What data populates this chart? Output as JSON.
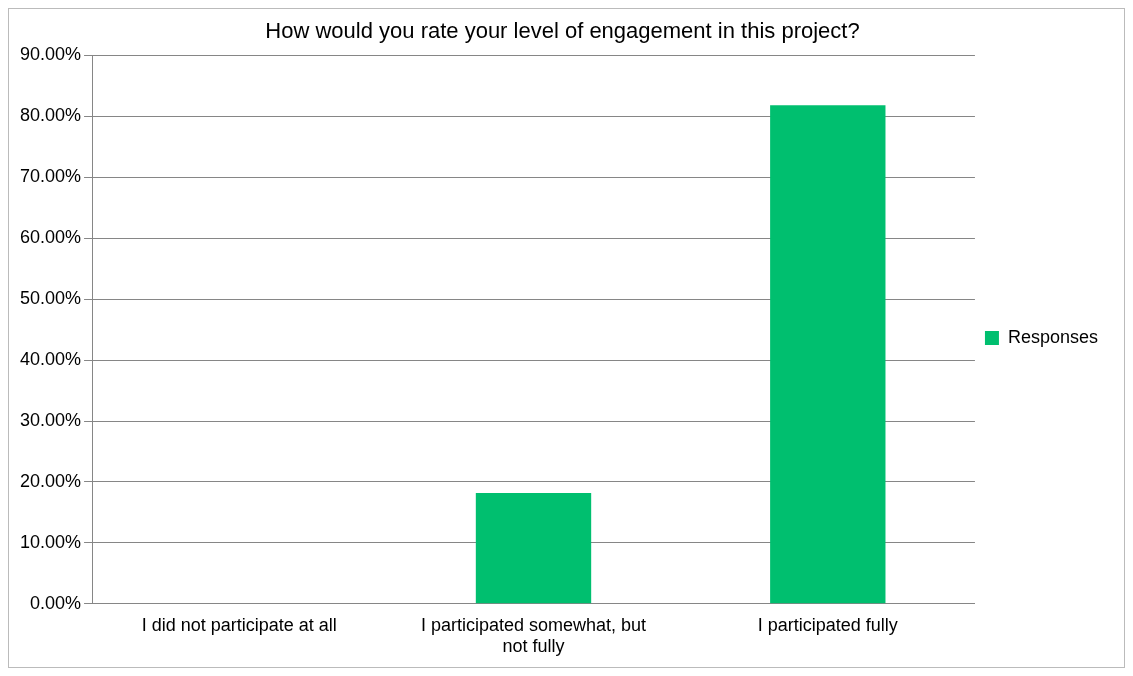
{
  "chart_data": {
    "type": "bar",
    "title": "How would you rate your level of engagement in this project?",
    "categories": [
      "I did not participate at all",
      "I participated somewhat, but not fully",
      "I participated fully"
    ],
    "series": [
      {
        "name": "Responses",
        "color": "#00bf6f",
        "values": [
          0,
          18.2,
          81.8
        ]
      }
    ],
    "ylim": [
      0,
      90
    ],
    "yticks": [
      {
        "value": 0,
        "label": "0.00%"
      },
      {
        "value": 10,
        "label": "10.00%"
      },
      {
        "value": 20,
        "label": "20.00%"
      },
      {
        "value": 30,
        "label": "30.00%"
      },
      {
        "value": 40,
        "label": "40.00%"
      },
      {
        "value": 50,
        "label": "50.00%"
      },
      {
        "value": 60,
        "label": "60.00%"
      },
      {
        "value": 70,
        "label": "70.00%"
      },
      {
        "value": 80,
        "label": "80.00%"
      },
      {
        "value": 90,
        "label": "90.00%"
      }
    ],
    "grid": "y",
    "legend": "right"
  }
}
